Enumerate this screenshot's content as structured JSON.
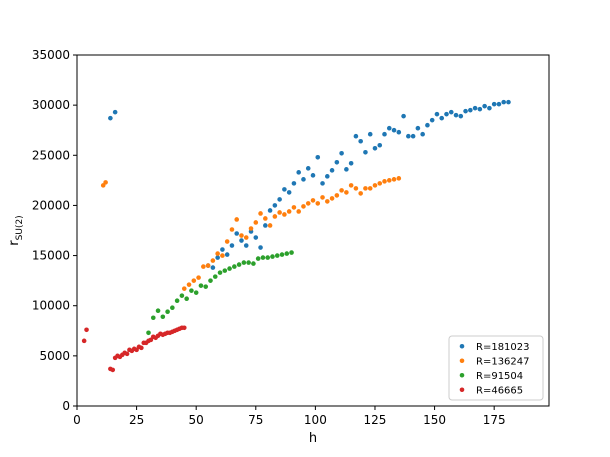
{
  "chart_data": {
    "type": "scatter",
    "title": "",
    "xlabel": "h",
    "ylabel_base": "r",
    "ylabel_sub": "SU(2)",
    "xlim": [
      0,
      198
    ],
    "ylim": [
      0,
      35000
    ],
    "xticks": [
      0,
      25,
      50,
      75,
      100,
      125,
      150,
      175
    ],
    "yticks": [
      0,
      5000,
      10000,
      15000,
      20000,
      25000,
      30000,
      35000
    ],
    "grid": false,
    "legend_position": "bottom-right",
    "series": [
      {
        "name": "R=181023",
        "color": "#1f77b4",
        "points": [
          [
            14,
            28700
          ],
          [
            16,
            29300
          ],
          [
            55,
            14000
          ],
          [
            57,
            13800
          ],
          [
            59,
            14800
          ],
          [
            61,
            15600
          ],
          [
            63,
            15100
          ],
          [
            65,
            16000
          ],
          [
            67,
            17200
          ],
          [
            69,
            16500
          ],
          [
            71,
            16000
          ],
          [
            73,
            17400
          ],
          [
            75,
            16800
          ],
          [
            77,
            15800
          ],
          [
            79,
            18000
          ],
          [
            81,
            19500
          ],
          [
            83,
            20000
          ],
          [
            85,
            20600
          ],
          [
            87,
            21600
          ],
          [
            89,
            21300
          ],
          [
            91,
            22200
          ],
          [
            93,
            23300
          ],
          [
            95,
            22600
          ],
          [
            97,
            23700
          ],
          [
            99,
            23000
          ],
          [
            101,
            24800
          ],
          [
            103,
            22200
          ],
          [
            105,
            22900
          ],
          [
            107,
            23500
          ],
          [
            109,
            24300
          ],
          [
            111,
            25200
          ],
          [
            113,
            23600
          ],
          [
            115,
            24200
          ],
          [
            117,
            26900
          ],
          [
            119,
            26400
          ],
          [
            121,
            25300
          ],
          [
            123,
            27100
          ],
          [
            125,
            25700
          ],
          [
            127,
            26000
          ],
          [
            129,
            27100
          ],
          [
            131,
            27700
          ],
          [
            133,
            27500
          ],
          [
            135,
            27300
          ],
          [
            137,
            28900
          ],
          [
            139,
            26900
          ],
          [
            141,
            26900
          ],
          [
            143,
            27700
          ],
          [
            145,
            27100
          ],
          [
            147,
            28000
          ],
          [
            149,
            28500
          ],
          [
            151,
            29100
          ],
          [
            153,
            28700
          ],
          [
            155,
            29100
          ],
          [
            157,
            29300
          ],
          [
            159,
            29000
          ],
          [
            161,
            28900
          ],
          [
            163,
            29400
          ],
          [
            165,
            29500
          ],
          [
            167,
            29700
          ],
          [
            169,
            29600
          ],
          [
            171,
            29900
          ],
          [
            173,
            29700
          ],
          [
            175,
            30100
          ],
          [
            177,
            30100
          ],
          [
            179,
            30300
          ],
          [
            181,
            30300
          ]
        ]
      },
      {
        "name": "R=136247",
        "color": "#ff7f0e",
        "points": [
          [
            11,
            22000
          ],
          [
            12,
            22300
          ],
          [
            45,
            11700
          ],
          [
            47,
            12100
          ],
          [
            49,
            12500
          ],
          [
            51,
            12800
          ],
          [
            53,
            13900
          ],
          [
            55,
            14000
          ],
          [
            57,
            14500
          ],
          [
            59,
            15200
          ],
          [
            61,
            15000
          ],
          [
            63,
            16400
          ],
          [
            65,
            17600
          ],
          [
            67,
            18600
          ],
          [
            69,
            17000
          ],
          [
            71,
            16800
          ],
          [
            73,
            17700
          ],
          [
            75,
            18300
          ],
          [
            77,
            19200
          ],
          [
            79,
            18700
          ],
          [
            81,
            18000
          ],
          [
            83,
            18900
          ],
          [
            85,
            19300
          ],
          [
            87,
            19100
          ],
          [
            89,
            19400
          ],
          [
            91,
            19800
          ],
          [
            93,
            19400
          ],
          [
            95,
            19900
          ],
          [
            97,
            20200
          ],
          [
            99,
            20500
          ],
          [
            101,
            20200
          ],
          [
            103,
            20800
          ],
          [
            105,
            20400
          ],
          [
            107,
            20700
          ],
          [
            109,
            21000
          ],
          [
            111,
            21500
          ],
          [
            113,
            21300
          ],
          [
            115,
            22000
          ],
          [
            117,
            21700
          ],
          [
            119,
            21200
          ],
          [
            121,
            21700
          ],
          [
            123,
            21700
          ],
          [
            125,
            22000
          ],
          [
            127,
            22200
          ],
          [
            129,
            22400
          ],
          [
            131,
            22500
          ],
          [
            133,
            22600
          ],
          [
            135,
            22700
          ]
        ]
      },
      {
        "name": "R=91504",
        "color": "#2ca02c",
        "points": [
          [
            30,
            7300
          ],
          [
            32,
            8800
          ],
          [
            34,
            9500
          ],
          [
            36,
            8900
          ],
          [
            38,
            9400
          ],
          [
            40,
            9800
          ],
          [
            42,
            10500
          ],
          [
            44,
            11000
          ],
          [
            46,
            10700
          ],
          [
            48,
            11500
          ],
          [
            50,
            11300
          ],
          [
            52,
            12000
          ],
          [
            54,
            11900
          ],
          [
            56,
            12500
          ],
          [
            58,
            12900
          ],
          [
            60,
            13300
          ],
          [
            62,
            13500
          ],
          [
            64,
            13700
          ],
          [
            66,
            13900
          ],
          [
            68,
            14100
          ],
          [
            70,
            14300
          ],
          [
            72,
            14300
          ],
          [
            74,
            14200
          ],
          [
            76,
            14700
          ],
          [
            78,
            14800
          ],
          [
            80,
            14800
          ],
          [
            82,
            14900
          ],
          [
            84,
            15000
          ],
          [
            86,
            15100
          ],
          [
            88,
            15200
          ],
          [
            90,
            15300
          ]
        ]
      },
      {
        "name": "R=46665",
        "color": "#d62728",
        "points": [
          [
            3,
            6500
          ],
          [
            4,
            7600
          ],
          [
            14,
            3700
          ],
          [
            15,
            3600
          ],
          [
            16,
            4800
          ],
          [
            17,
            5000
          ],
          [
            18,
            4900
          ],
          [
            19,
            5100
          ],
          [
            20,
            5300
          ],
          [
            21,
            5200
          ],
          [
            22,
            5600
          ],
          [
            23,
            5500
          ],
          [
            24,
            5700
          ],
          [
            25,
            5600
          ],
          [
            26,
            5900
          ],
          [
            27,
            5800
          ],
          [
            28,
            6300
          ],
          [
            29,
            6300
          ],
          [
            30,
            6500
          ],
          [
            31,
            6600
          ],
          [
            32,
            6900
          ],
          [
            33,
            6800
          ],
          [
            34,
            7000
          ],
          [
            35,
            7200
          ],
          [
            36,
            7100
          ],
          [
            37,
            7200
          ],
          [
            38,
            7300
          ],
          [
            39,
            7300
          ],
          [
            40,
            7400
          ],
          [
            41,
            7500
          ],
          [
            42,
            7600
          ],
          [
            43,
            7700
          ],
          [
            44,
            7800
          ],
          [
            45,
            7800
          ]
        ]
      }
    ]
  }
}
